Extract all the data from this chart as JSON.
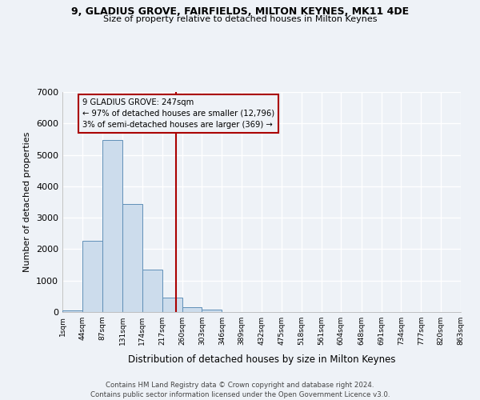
{
  "title": "9, GLADIUS GROVE, FAIRFIELDS, MILTON KEYNES, MK11 4DE",
  "subtitle": "Size of property relative to detached houses in Milton Keynes",
  "xlabel": "Distribution of detached houses by size in Milton Keynes",
  "ylabel": "Number of detached properties",
  "bin_edges": [
    1,
    44,
    87,
    131,
    174,
    217,
    260,
    303,
    346,
    389,
    432,
    475,
    518,
    561,
    604,
    648,
    691,
    734,
    777,
    820,
    863
  ],
  "bar_heights": [
    50,
    2270,
    5480,
    3430,
    1340,
    460,
    165,
    80,
    0,
    0,
    0,
    0,
    0,
    0,
    0,
    0,
    0,
    0,
    0,
    0
  ],
  "bar_color": "#ccdcec",
  "bar_edge_color": "#6090b8",
  "property_size": 247,
  "property_label": "9 GLADIUS GROVE: 247sqm",
  "pct_smaller": 97,
  "count_smaller": 12796,
  "pct_larger": 3,
  "count_larger": 369,
  "vline_color": "#aa0000",
  "annotation_box_color": "#aa0000",
  "ylim": [
    0,
    7000
  ],
  "yticks": [
    0,
    1000,
    2000,
    3000,
    4000,
    5000,
    6000,
    7000
  ],
  "tick_labels": [
    "1sqm",
    "44sqm",
    "87sqm",
    "131sqm",
    "174sqm",
    "217sqm",
    "260sqm",
    "303sqm",
    "346sqm",
    "389sqm",
    "432sqm",
    "475sqm",
    "518sqm",
    "561sqm",
    "604sqm",
    "648sqm",
    "691sqm",
    "734sqm",
    "777sqm",
    "820sqm",
    "863sqm"
  ],
  "footer_line1": "Contains HM Land Registry data © Crown copyright and database right 2024.",
  "footer_line2": "Contains public sector information licensed under the Open Government Licence v3.0.",
  "background_color": "#eef2f7",
  "grid_color": "#ffffff"
}
